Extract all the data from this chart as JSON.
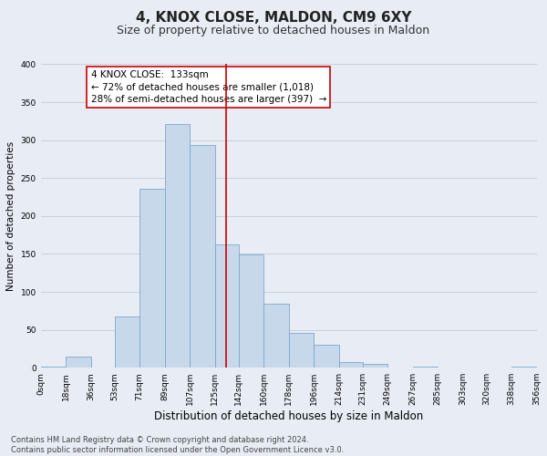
{
  "title": "4, KNOX CLOSE, MALDON, CM9 6XY",
  "subtitle": "Size of property relative to detached houses in Maldon",
  "xlabel": "Distribution of detached houses by size in Maldon",
  "ylabel": "Number of detached properties",
  "bin_edges": [
    0,
    18,
    36,
    53,
    71,
    89,
    107,
    125,
    142,
    160,
    178,
    196,
    214,
    231,
    249,
    267,
    285,
    303,
    320,
    338,
    356
  ],
  "bin_labels": [
    "0sqm",
    "18sqm",
    "36sqm",
    "53sqm",
    "71sqm",
    "89sqm",
    "107sqm",
    "125sqm",
    "142sqm",
    "160sqm",
    "178sqm",
    "196sqm",
    "214sqm",
    "231sqm",
    "249sqm",
    "267sqm",
    "285sqm",
    "303sqm",
    "320sqm",
    "338sqm",
    "356sqm"
  ],
  "counts": [
    2,
    15,
    0,
    68,
    236,
    321,
    293,
    163,
    149,
    85,
    46,
    30,
    8,
    5,
    0,
    1,
    0,
    0,
    0,
    2
  ],
  "bar_facecolor": "#c8d8eb",
  "bar_edgecolor": "#7aa8cc",
  "vline_x": 133,
  "vline_color": "#cc0000",
  "annotation_line1": "4 KNOX CLOSE:  133sqm",
  "annotation_line2": "← 72% of detached houses are smaller (1,018)",
  "annotation_line3": "28% of semi-detached houses are larger (397)  →",
  "annotation_box_facecolor": "#ffffff",
  "annotation_box_edgecolor": "#cc0000",
  "ylim": [
    0,
    400
  ],
  "yticks": [
    0,
    50,
    100,
    150,
    200,
    250,
    300,
    350,
    400
  ],
  "grid_color": "#c8d0dc",
  "background_color": "#e8edf5",
  "plot_bg_color": "#e8edf5",
  "footer_text": "Contains HM Land Registry data © Crown copyright and database right 2024.\nContains public sector information licensed under the Open Government Licence v3.0.",
  "title_fontsize": 11,
  "subtitle_fontsize": 9,
  "xlabel_fontsize": 8.5,
  "ylabel_fontsize": 7.5,
  "tick_fontsize": 6.5,
  "annotation_fontsize": 7.5,
  "footer_fontsize": 6
}
